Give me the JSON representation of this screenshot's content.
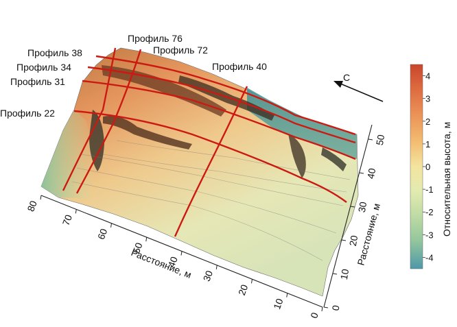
{
  "chart_data": {
    "type": "surface",
    "x_axis": {
      "title": "Расстояние, м",
      "ticks": [
        "0",
        "10",
        "20",
        "30",
        "40",
        "50",
        "60",
        "70",
        "80"
      ]
    },
    "y_axis": {
      "title": "Расстояние, м",
      "ticks": [
        "0",
        "10",
        "20",
        "30",
        "40",
        "50"
      ]
    },
    "colorbar": {
      "title": "Относительная высота, м",
      "ticks": [
        "4",
        "3",
        "2",
        "1",
        "0",
        "-1",
        "-2",
        "-3",
        "-4"
      ],
      "range": [
        -4.5,
        4.5
      ],
      "colors": [
        "#c8462c",
        "#de6b40",
        "#eb9458",
        "#f3bd72",
        "#f4e4a0",
        "#e3ebb0",
        "#bedba4",
        "#94c79c",
        "#6fb0a2",
        "#4f98a8"
      ]
    },
    "profiles": [
      "Профиль 76",
      "Профиль 72",
      "Профиль 40",
      "Профиль 38",
      "Профиль 34",
      "Профиль 31",
      "Профиль 22"
    ],
    "north_label": "С"
  },
  "colors": {
    "profile_line": "#cc1a12"
  }
}
